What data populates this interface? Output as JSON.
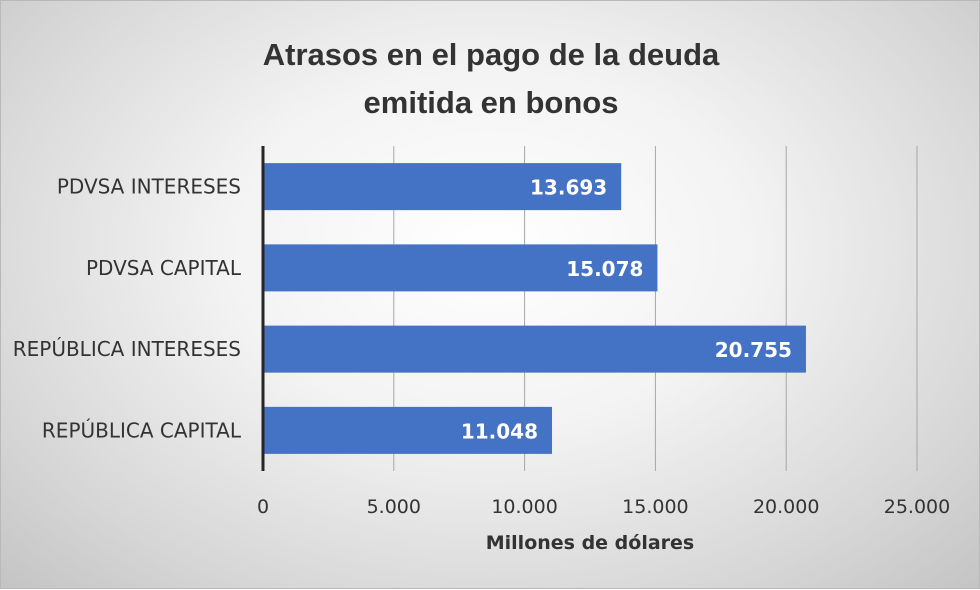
{
  "chart_data": {
    "type": "bar",
    "orientation": "horizontal",
    "title_lines": [
      "Atrasos en el pago de la deuda",
      "emitida en bonos"
    ],
    "categories": [
      "PDVSA INTERESES",
      "PDVSA CAPITAL",
      "REPÚBLICA INTERESES",
      "REPÚBLICA CAPITAL"
    ],
    "values": [
      13693,
      15078,
      20755,
      11048
    ],
    "value_labels": [
      "13.693",
      "15.078",
      "20.755",
      "11.048"
    ],
    "xlabel": "Millones de dólares",
    "xlim": [
      0,
      25000
    ],
    "x_ticks": [
      0,
      5000,
      10000,
      15000,
      20000,
      25000
    ],
    "x_tick_labels": [
      "0",
      "5.000",
      "10.000",
      "15.000",
      "20.000",
      "25.000"
    ],
    "grid": "vertical",
    "legend": "none",
    "bar_color": "#4472C4"
  }
}
